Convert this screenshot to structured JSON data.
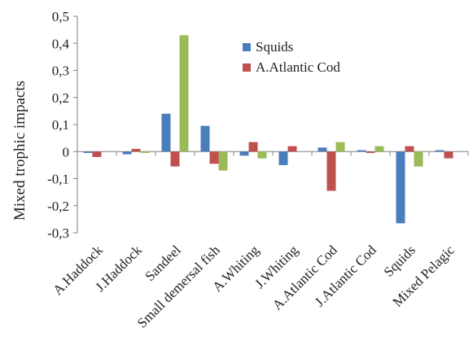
{
  "chart_data": {
    "type": "bar",
    "title": "",
    "xlabel": "",
    "ylabel": "Mixed trophic impacts",
    "ylim": [
      -0.3,
      0.5
    ],
    "yticks": [
      -0.3,
      -0.2,
      -0.1,
      0,
      0.1,
      0.2,
      0.3,
      0.4,
      0.5
    ],
    "ytick_labels": [
      "-0,3",
      "-0,2",
      "-0,1",
      "0",
      "0,1",
      "0,2",
      "0,3",
      "0,4",
      "0,5"
    ],
    "grid": false,
    "legend_position": "top-right",
    "categories": [
      "A.Haddock",
      "J.Haddock",
      "Sandeel",
      "Small demersal fish",
      "A.Whiting",
      "J.Whiting",
      "A.Atlantic Cod",
      "J.Atlantic Cod",
      "Squids",
      "Mixed Pelagic"
    ],
    "series": [
      {
        "name": "Squids",
        "color": "#4a7ebb",
        "values": [
          -0.005,
          -0.01,
          0.14,
          0.095,
          -0.015,
          -0.05,
          0.015,
          0.005,
          -0.265,
          0.005
        ]
      },
      {
        "name": "A.Atlantic Cod",
        "color": "#c0504d",
        "values": [
          -0.02,
          0.01,
          -0.055,
          -0.045,
          0.035,
          0.02,
          -0.145,
          -0.005,
          0.02,
          -0.025
        ]
      },
      {
        "name": "",
        "color": "#9bbb59",
        "values": [
          0,
          -0.005,
          0.43,
          -0.07,
          -0.025,
          0,
          0.035,
          0.02,
          -0.055,
          0
        ]
      }
    ]
  }
}
